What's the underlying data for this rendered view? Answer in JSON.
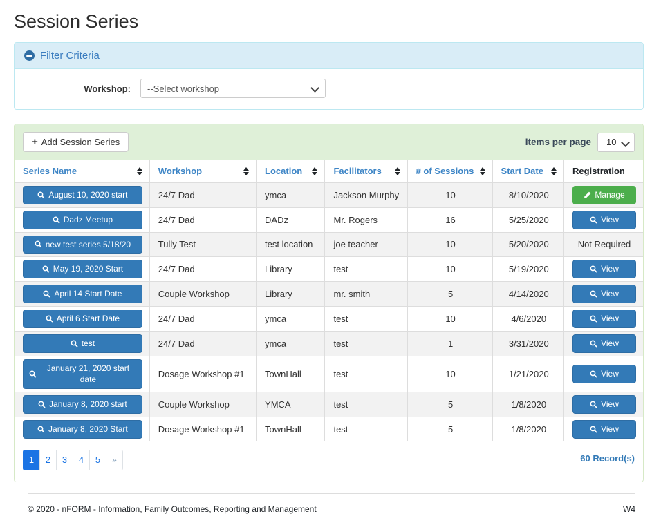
{
  "page": {
    "title": "Session Series"
  },
  "colors": {
    "primary-blue": "#337ab7",
    "primary-blue-dark": "#2e6da4",
    "success-green": "#4cae4c",
    "header-blue": "#3d85c6",
    "filter-header-bg": "#d9edf7",
    "filter-border": "#bce8f1",
    "filter-title": "#3a7cbf",
    "panel-heading-bg": "#dff0d8",
    "panel-border": "#d6e9c6",
    "pager-blue": "#1b74e4"
  },
  "filter": {
    "title": "Filter Criteria",
    "workshop_label": "Workshop:",
    "workshop_selected": "--Select workshop"
  },
  "toolbar": {
    "add_button_label": "Add Session Series",
    "items_per_page_label": "Items per page",
    "items_per_page_value": "10"
  },
  "table": {
    "columns": [
      {
        "label": "Series Name",
        "sortable": true
      },
      {
        "label": "Workshop",
        "sortable": true
      },
      {
        "label": "Location",
        "sortable": true
      },
      {
        "label": "Facilitators",
        "sortable": true
      },
      {
        "label": "# of Sessions",
        "sortable": true
      },
      {
        "label": "Start Date",
        "sortable": true
      },
      {
        "label": "Registration",
        "sortable": false
      }
    ],
    "rows": [
      {
        "series_name": "August 10, 2020 start",
        "workshop": "24/7 Dad",
        "location": "ymca",
        "facilitators": "Jackson Murphy",
        "sessions": "10",
        "start_date": "8/10/2020",
        "registration": {
          "type": "manage",
          "label": "Manage"
        }
      },
      {
        "series_name": "Dadz Meetup",
        "workshop": "24/7 Dad",
        "location": "DADz",
        "facilitators": "Mr. Rogers",
        "sessions": "16",
        "start_date": "5/25/2020",
        "registration": {
          "type": "view",
          "label": "View"
        }
      },
      {
        "series_name": "new test series 5/18/20",
        "workshop": "Tully Test",
        "location": "test location",
        "facilitators": "joe teacher",
        "sessions": "10",
        "start_date": "5/20/2020",
        "registration": {
          "type": "none",
          "label": "Not Required"
        }
      },
      {
        "series_name": "May 19, 2020 Start",
        "workshop": "24/7 Dad",
        "location": "Library",
        "facilitators": "test",
        "sessions": "10",
        "start_date": "5/19/2020",
        "registration": {
          "type": "view",
          "label": "View"
        }
      },
      {
        "series_name": "April 14 Start Date",
        "workshop": "Couple Workshop",
        "location": "Library",
        "facilitators": "mr. smith",
        "sessions": "5",
        "start_date": "4/14/2020",
        "registration": {
          "type": "view",
          "label": "View"
        }
      },
      {
        "series_name": "April 6 Start Date",
        "workshop": "24/7 Dad",
        "location": "ymca",
        "facilitators": "test",
        "sessions": "10",
        "start_date": "4/6/2020",
        "registration": {
          "type": "view",
          "label": "View"
        }
      },
      {
        "series_name": "test",
        "workshop": "24/7 Dad",
        "location": "ymca",
        "facilitators": "test",
        "sessions": "1",
        "start_date": "3/31/2020",
        "registration": {
          "type": "view",
          "label": "View"
        }
      },
      {
        "series_name": "January 21, 2020 start date",
        "workshop": "Dosage Workshop #1",
        "location": "TownHall",
        "facilitators": "test",
        "sessions": "10",
        "start_date": "1/21/2020",
        "registration": {
          "type": "view",
          "label": "View"
        }
      },
      {
        "series_name": "January 8, 2020 start",
        "workshop": "Couple Workshop",
        "location": "YMCA",
        "facilitators": "test",
        "sessions": "5",
        "start_date": "1/8/2020",
        "registration": {
          "type": "view",
          "label": "View"
        }
      },
      {
        "series_name": "January 8, 2020 Start",
        "workshop": "Dosage Workshop #1",
        "location": "TownHall",
        "facilitators": "test",
        "sessions": "5",
        "start_date": "1/8/2020",
        "registration": {
          "type": "view",
          "label": "View"
        }
      }
    ]
  },
  "pagination": {
    "pages": [
      "1",
      "2",
      "3",
      "4",
      "5"
    ],
    "active_page": "1",
    "next_label": "»",
    "record_count": "60 Record(s)"
  },
  "footer": {
    "copyright": "© 2020 - nFORM - Information, Family Outcomes, Reporting and Management",
    "version": "W4"
  }
}
